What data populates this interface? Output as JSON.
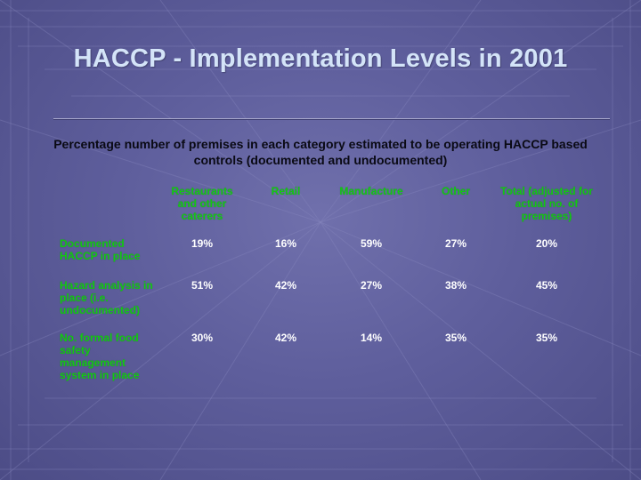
{
  "slide": {
    "title": "HACCP - Implementation Levels in 2001",
    "subtitle": "Percentage number of premises in each category estimated to be operating HACCP based controls (documented and undocumented)"
  },
  "table": {
    "columns": [
      "Restaurants and other caterers",
      "Retail",
      "Manufacture",
      "Other",
      "Total (adjusted for actual no. of premises)"
    ],
    "rows": [
      {
        "label": "Documented HACCP in place",
        "values": [
          "19%",
          "16%",
          "59%",
          "27%",
          "20%"
        ]
      },
      {
        "label": "Hazard analysis in place (i.e. undocumented)",
        "values": [
          "51%",
          "42%",
          "27%",
          "38%",
          "45%"
        ]
      },
      {
        "label": "No. formal food safety management system in place",
        "values": [
          "30%",
          "42%",
          "14%",
          "35%",
          "35%"
        ]
      }
    ]
  },
  "colors": {
    "background": "#5a5a94",
    "title": "#d4e4f8",
    "header_text": "#14c814",
    "value_text": "#ffffff",
    "subtitle_text": "#0a0a14"
  }
}
